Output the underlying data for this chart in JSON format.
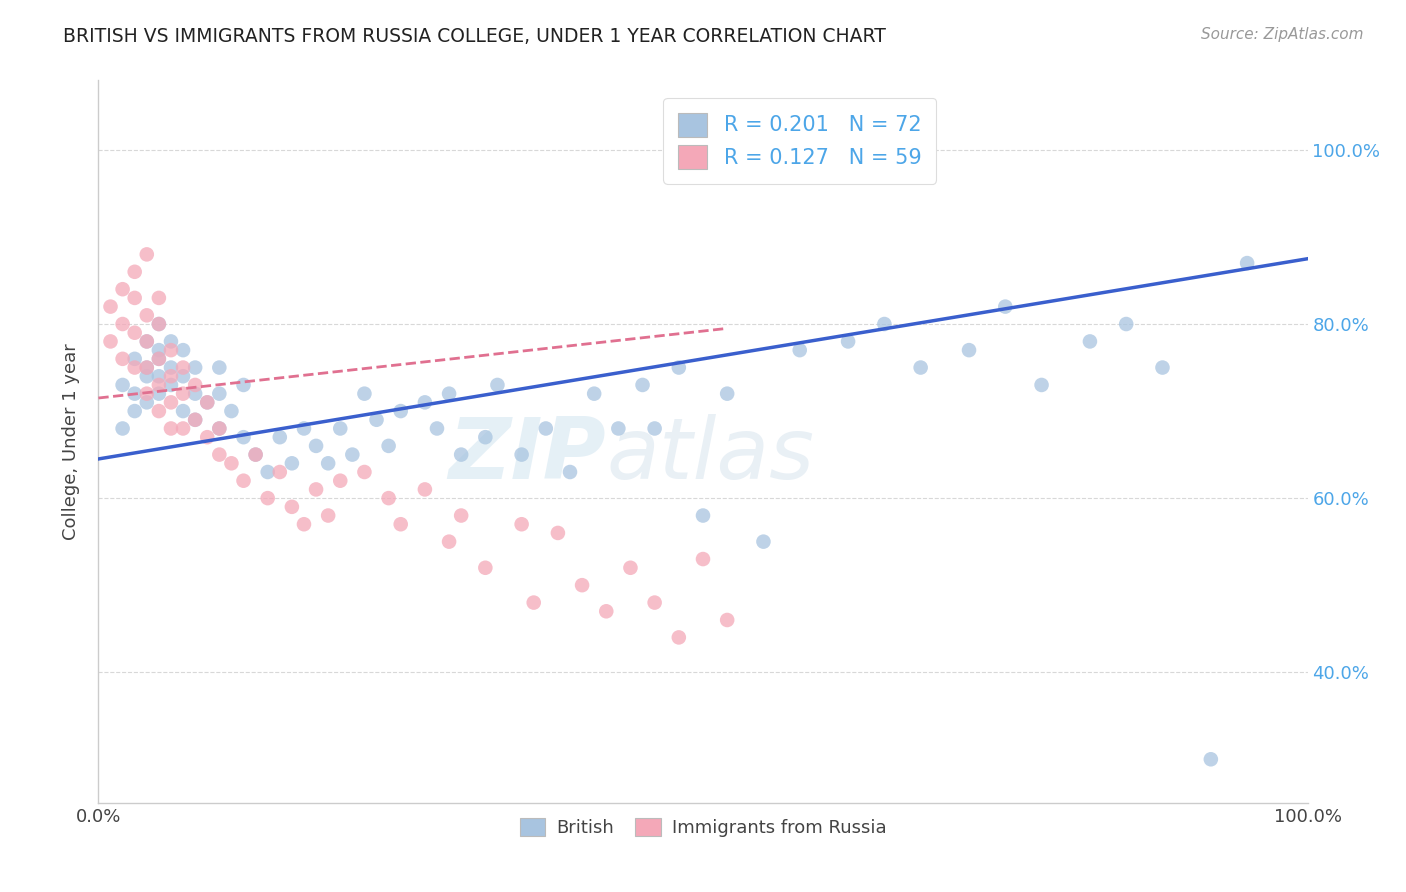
{
  "title": "BRITISH VS IMMIGRANTS FROM RUSSIA COLLEGE, UNDER 1 YEAR CORRELATION CHART",
  "source_text": "Source: ZipAtlas.com",
  "ylabel": "College, Under 1 year",
  "xlim": [
    0.0,
    1.0
  ],
  "ylim": [
    0.25,
    1.08
  ],
  "x_tick_labels": [
    "0.0%",
    "100.0%"
  ],
  "x_tick_positions": [
    0.0,
    1.0
  ],
  "y_tick_positions": [
    0.4,
    0.6,
    0.8,
    1.0
  ],
  "right_y_tick_labels": [
    "40.0%",
    "60.0%",
    "80.0%",
    "100.0%"
  ],
  "blue_R": 0.201,
  "blue_N": 72,
  "pink_R": 0.127,
  "pink_N": 59,
  "blue_color": "#a8c4e0",
  "pink_color": "#f4a8b8",
  "blue_line_color": "#3a5fcd",
  "pink_line_color": "#e07090",
  "grid_color": "#d8d8d8",
  "background_color": "#ffffff",
  "legend_R_color": "#4da6e8",
  "title_color": "#222222",
  "blue_scatter_x": [
    0.02,
    0.02,
    0.03,
    0.03,
    0.03,
    0.04,
    0.04,
    0.04,
    0.04,
    0.05,
    0.05,
    0.05,
    0.05,
    0.05,
    0.06,
    0.06,
    0.06,
    0.07,
    0.07,
    0.07,
    0.08,
    0.08,
    0.08,
    0.09,
    0.1,
    0.1,
    0.1,
    0.11,
    0.12,
    0.12,
    0.13,
    0.14,
    0.15,
    0.16,
    0.17,
    0.18,
    0.19,
    0.2,
    0.21,
    0.22,
    0.23,
    0.24,
    0.25,
    0.27,
    0.28,
    0.29,
    0.3,
    0.32,
    0.33,
    0.35,
    0.37,
    0.39,
    0.41,
    0.43,
    0.45,
    0.46,
    0.48,
    0.5,
    0.52,
    0.55,
    0.58,
    0.62,
    0.65,
    0.68,
    0.72,
    0.75,
    0.78,
    0.82,
    0.85,
    0.88,
    0.92,
    0.95
  ],
  "blue_scatter_y": [
    0.73,
    0.68,
    0.76,
    0.72,
    0.7,
    0.75,
    0.71,
    0.74,
    0.78,
    0.77,
    0.72,
    0.74,
    0.76,
    0.8,
    0.73,
    0.75,
    0.78,
    0.7,
    0.74,
    0.77,
    0.69,
    0.72,
    0.75,
    0.71,
    0.68,
    0.72,
    0.75,
    0.7,
    0.67,
    0.73,
    0.65,
    0.63,
    0.67,
    0.64,
    0.68,
    0.66,
    0.64,
    0.68,
    0.65,
    0.72,
    0.69,
    0.66,
    0.7,
    0.71,
    0.68,
    0.72,
    0.65,
    0.67,
    0.73,
    0.65,
    0.68,
    0.63,
    0.72,
    0.68,
    0.73,
    0.68,
    0.75,
    0.58,
    0.72,
    0.55,
    0.77,
    0.78,
    0.8,
    0.75,
    0.77,
    0.82,
    0.73,
    0.78,
    0.8,
    0.75,
    0.3,
    0.87
  ],
  "pink_scatter_x": [
    0.01,
    0.01,
    0.02,
    0.02,
    0.02,
    0.03,
    0.03,
    0.03,
    0.03,
    0.04,
    0.04,
    0.04,
    0.04,
    0.04,
    0.05,
    0.05,
    0.05,
    0.05,
    0.05,
    0.06,
    0.06,
    0.06,
    0.06,
    0.07,
    0.07,
    0.07,
    0.08,
    0.08,
    0.09,
    0.09,
    0.1,
    0.1,
    0.11,
    0.12,
    0.13,
    0.14,
    0.15,
    0.16,
    0.17,
    0.18,
    0.19,
    0.2,
    0.22,
    0.24,
    0.25,
    0.27,
    0.29,
    0.3,
    0.32,
    0.35,
    0.36,
    0.38,
    0.4,
    0.42,
    0.44,
    0.46,
    0.48,
    0.5,
    0.52
  ],
  "pink_scatter_y": [
    0.82,
    0.78,
    0.84,
    0.8,
    0.76,
    0.83,
    0.79,
    0.75,
    0.86,
    0.81,
    0.78,
    0.75,
    0.72,
    0.88,
    0.8,
    0.76,
    0.73,
    0.7,
    0.83,
    0.77,
    0.74,
    0.71,
    0.68,
    0.75,
    0.72,
    0.68,
    0.73,
    0.69,
    0.71,
    0.67,
    0.68,
    0.65,
    0.64,
    0.62,
    0.65,
    0.6,
    0.63,
    0.59,
    0.57,
    0.61,
    0.58,
    0.62,
    0.63,
    0.6,
    0.57,
    0.61,
    0.55,
    0.58,
    0.52,
    0.57,
    0.48,
    0.56,
    0.5,
    0.47,
    0.52,
    0.48,
    0.44,
    0.53,
    0.46
  ],
  "blue_trend_y_start": 0.645,
  "blue_trend_y_end": 0.875,
  "pink_trend_x_start": 0.0,
  "pink_trend_x_end": 0.52,
  "pink_trend_y_start": 0.715,
  "pink_trend_y_end": 0.795,
  "watermark_zip": "ZIP",
  "watermark_atlas": "atlas",
  "marker_size": 110
}
